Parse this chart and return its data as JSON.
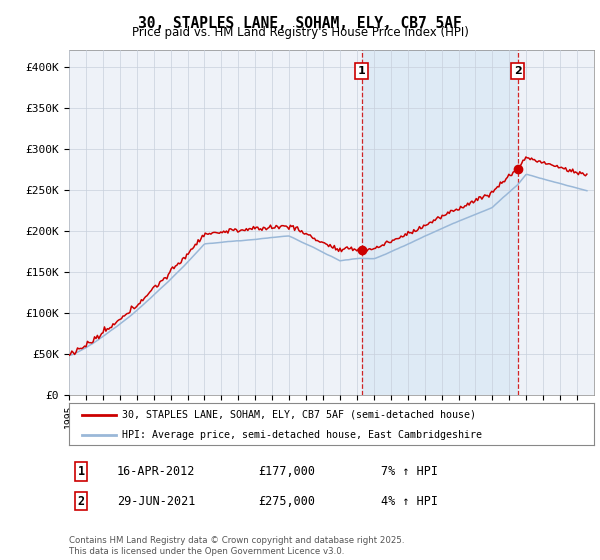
{
  "title": "30, STAPLES LANE, SOHAM, ELY, CB7 5AF",
  "subtitle": "Price paid vs. HM Land Registry's House Price Index (HPI)",
  "ylabel_ticks": [
    "£0",
    "£50K",
    "£100K",
    "£150K",
    "£200K",
    "£250K",
    "£300K",
    "£350K",
    "£400K"
  ],
  "ytick_values": [
    0,
    50000,
    100000,
    150000,
    200000,
    250000,
    300000,
    350000,
    400000
  ],
  "ylim": [
    0,
    420000
  ],
  "xlim_start": 1995.0,
  "xlim_end": 2026.0,
  "hpi_color": "#9ab8d8",
  "price_color": "#cc0000",
  "marker1_x": 2012.29,
  "marker1_y": 177000,
  "marker2_x": 2021.49,
  "marker2_y": 275000,
  "dashed_line_color": "#cc0000",
  "shade_color": "#d8e8f5",
  "legend_label1": "30, STAPLES LANE, SOHAM, ELY, CB7 5AF (semi-detached house)",
  "legend_label2": "HPI: Average price, semi-detached house, East Cambridgeshire",
  "annotation1_label": "1",
  "annotation2_label": "2",
  "annotation1_date": "16-APR-2012",
  "annotation1_price": "£177,000",
  "annotation1_hpi": "7% ↑ HPI",
  "annotation2_date": "29-JUN-2021",
  "annotation2_price": "£275,000",
  "annotation2_hpi": "4% ↑ HPI",
  "footnote": "Contains HM Land Registry data © Crown copyright and database right 2025.\nThis data is licensed under the Open Government Licence v3.0.",
  "background_color": "#ffffff",
  "plot_bg_color": "#eef2f8"
}
